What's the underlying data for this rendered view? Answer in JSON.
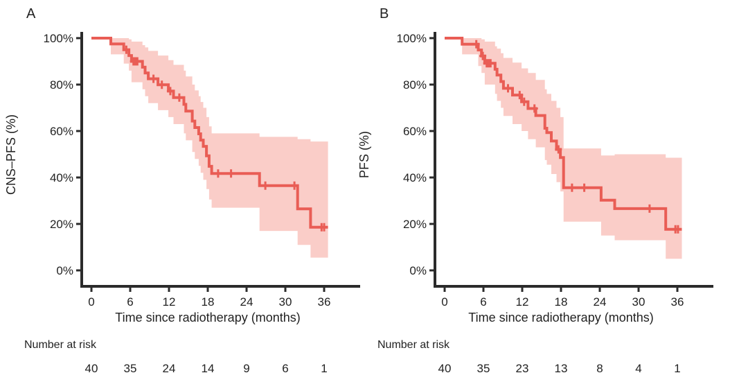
{
  "figure": {
    "background": "#ffffff",
    "text_color": "#222222",
    "axis_color": "#2b2b2b",
    "line_color": "#e95d55",
    "band_color": "#facdc8"
  },
  "chart_data": [
    {
      "panel_label": "A",
      "type": "line",
      "subtype": "kaplan-meier-step-curve-with-confidence-band",
      "series_name": "CNS-PFS",
      "ylabel": "CNS–PFS (%)",
      "xlabel": "Time since radiotherapy (months)",
      "xlim": [
        0,
        41
      ],
      "ylim": [
        0,
        100
      ],
      "grid": "off",
      "legend": "none",
      "xticks": [
        0,
        6,
        12,
        18,
        24,
        30,
        36
      ],
      "ytick_values": [
        0,
        20,
        40,
        60,
        80,
        100
      ],
      "ytick_labels": [
        "0%",
        "20%",
        "40%",
        "60%",
        "80%",
        "100%"
      ],
      "line_color": "#e95d55",
      "band_color": "#facdc8",
      "survival_steps": [
        [
          0,
          100
        ],
        [
          3.0,
          97.5
        ],
        [
          5.0,
          95.0
        ],
        [
          5.8,
          92.5
        ],
        [
          6.2,
          90.0
        ],
        [
          7.9,
          87.5
        ],
        [
          8.3,
          85.0
        ],
        [
          8.8,
          82.5
        ],
        [
          10.3,
          79.9
        ],
        [
          11.9,
          77.2
        ],
        [
          12.7,
          74.4
        ],
        [
          14.3,
          71.5
        ],
        [
          14.6,
          68.6
        ],
        [
          15.6,
          64.3
        ],
        [
          16.0,
          61.5
        ],
        [
          16.6,
          58.8
        ],
        [
          16.9,
          56.1
        ],
        [
          17.3,
          53.4
        ],
        [
          17.8,
          49.3
        ],
        [
          18.2,
          44.8
        ],
        [
          18.6,
          41.7
        ],
        [
          26.0,
          36.5
        ],
        [
          31.9,
          26.5
        ],
        [
          33.9,
          18.6
        ],
        [
          36.6,
          18.6
        ]
      ],
      "ci_steps": [
        [
          3.0,
          100,
          93
        ],
        [
          5.0,
          100,
          89
        ],
        [
          5.8,
          99.5,
          86
        ],
        [
          6.2,
          98.5,
          81
        ],
        [
          7.9,
          97,
          78
        ],
        [
          8.3,
          96,
          75
        ],
        [
          8.8,
          94.5,
          72
        ],
        [
          10.3,
          92.5,
          69
        ],
        [
          11.9,
          90.5,
          66
        ],
        [
          12.7,
          88.5,
          63
        ],
        [
          14.3,
          86,
          59
        ],
        [
          14.6,
          83.5,
          56
        ],
        [
          15.6,
          80,
          51
        ],
        [
          16.0,
          77.5,
          48
        ],
        [
          16.6,
          75,
          45
        ],
        [
          16.9,
          72.5,
          42
        ],
        [
          17.3,
          70,
          39
        ],
        [
          17.8,
          66,
          35
        ],
        [
          18.2,
          62,
          30.5
        ],
        [
          18.6,
          59,
          27
        ],
        [
          26.0,
          57.5,
          17
        ],
        [
          31.9,
          56.5,
          11
        ],
        [
          33.9,
          55.5,
          5.5
        ],
        [
          36.6,
          55.5,
          5.5
        ]
      ],
      "censor_marks": [
        [
          5.4,
          95.0
        ],
        [
          6.5,
          90.0
        ],
        [
          6.8,
          90.0
        ],
        [
          7.1,
          90.0
        ],
        [
          9.6,
          82.5
        ],
        [
          10.9,
          79.9
        ],
        [
          12.2,
          77.2
        ],
        [
          13.6,
          74.4
        ],
        [
          19.6,
          41.7
        ],
        [
          21.6,
          41.7
        ],
        [
          26.9,
          36.5
        ],
        [
          31.4,
          36.5
        ],
        [
          35.6,
          18.6
        ],
        [
          36.0,
          18.6
        ]
      ],
      "number_at_risk": {
        "label": "Number at risk",
        "times": [
          0,
          6,
          12,
          18,
          24,
          30,
          36
        ],
        "counts": [
          40,
          35,
          24,
          14,
          9,
          6,
          1
        ]
      }
    },
    {
      "panel_label": "B",
      "type": "line",
      "subtype": "kaplan-meier-step-curve-with-confidence-band",
      "series_name": "PFS",
      "ylabel": "PFS (%)",
      "xlabel": "Time since radiotherapy (months)",
      "xlim": [
        0,
        41
      ],
      "ylim": [
        0,
        100
      ],
      "grid": "off",
      "legend": "none",
      "xticks": [
        0,
        6,
        12,
        18,
        24,
        30,
        36
      ],
      "ytick_values": [
        0,
        20,
        40,
        60,
        80,
        100
      ],
      "ytick_labels": [
        "0%",
        "20%",
        "40%",
        "60%",
        "80%",
        "100%"
      ],
      "line_color": "#e95d55",
      "band_color": "#facdc8",
      "survival_steps": [
        [
          0,
          100
        ],
        [
          2.7,
          97.4
        ],
        [
          5.2,
          94.9
        ],
        [
          5.7,
          92.3
        ],
        [
          6.2,
          89.2
        ],
        [
          7.8,
          86.6
        ],
        [
          8.1,
          84.1
        ],
        [
          8.7,
          81.3
        ],
        [
          9.1,
          78.4
        ],
        [
          10.5,
          75.5
        ],
        [
          11.9,
          72.6
        ],
        [
          12.9,
          69.7
        ],
        [
          14.1,
          66.7
        ],
        [
          15.5,
          61.2
        ],
        [
          15.8,
          59.3
        ],
        [
          16.5,
          55.7
        ],
        [
          17.3,
          52.1
        ],
        [
          17.9,
          48.6
        ],
        [
          18.4,
          35.6
        ],
        [
          24.2,
          30.2
        ],
        [
          26.3,
          26.6
        ],
        [
          34.2,
          17.7
        ],
        [
          36.7,
          17.7
        ]
      ],
      "ci_steps": [
        [
          2.7,
          100,
          93
        ],
        [
          5.2,
          100,
          88
        ],
        [
          5.7,
          99.5,
          85
        ],
        [
          6.2,
          98.5,
          80
        ],
        [
          7.8,
          96.5,
          76
        ],
        [
          8.1,
          95.5,
          73
        ],
        [
          8.7,
          93.5,
          70
        ],
        [
          9.1,
          91.5,
          66.5
        ],
        [
          10.5,
          89.5,
          63
        ],
        [
          11.9,
          87,
          60
        ],
        [
          12.9,
          85,
          56.5
        ],
        [
          14.1,
          82,
          53
        ],
        [
          15.5,
          78,
          47.5
        ],
        [
          15.8,
          76,
          45.5
        ],
        [
          16.5,
          73,
          41.5
        ],
        [
          17.3,
          70,
          38
        ],
        [
          17.9,
          66,
          34
        ],
        [
          18.4,
          52.5,
          21
        ],
        [
          24.2,
          49.5,
          15
        ],
        [
          26.3,
          50,
          13
        ],
        [
          34.2,
          48.5,
          5
        ],
        [
          36.7,
          48.5,
          5
        ]
      ],
      "censor_marks": [
        [
          4.9,
          97.4
        ],
        [
          5.9,
          92.3
        ],
        [
          6.5,
          89.2
        ],
        [
          6.8,
          89.2
        ],
        [
          7.1,
          89.2
        ],
        [
          9.8,
          78.4
        ],
        [
          11.6,
          75.5
        ],
        [
          12.3,
          72.6
        ],
        [
          13.9,
          69.7
        ],
        [
          17.6,
          52.1
        ],
        [
          19.7,
          35.6
        ],
        [
          21.6,
          35.6
        ],
        [
          31.7,
          26.6
        ],
        [
          35.7,
          17.7
        ],
        [
          36.1,
          17.7
        ]
      ],
      "number_at_risk": {
        "label": "Number at risk",
        "times": [
          0,
          6,
          12,
          18,
          24,
          30,
          36
        ],
        "counts": [
          40,
          35,
          23,
          13,
          8,
          4,
          1
        ]
      }
    }
  ]
}
